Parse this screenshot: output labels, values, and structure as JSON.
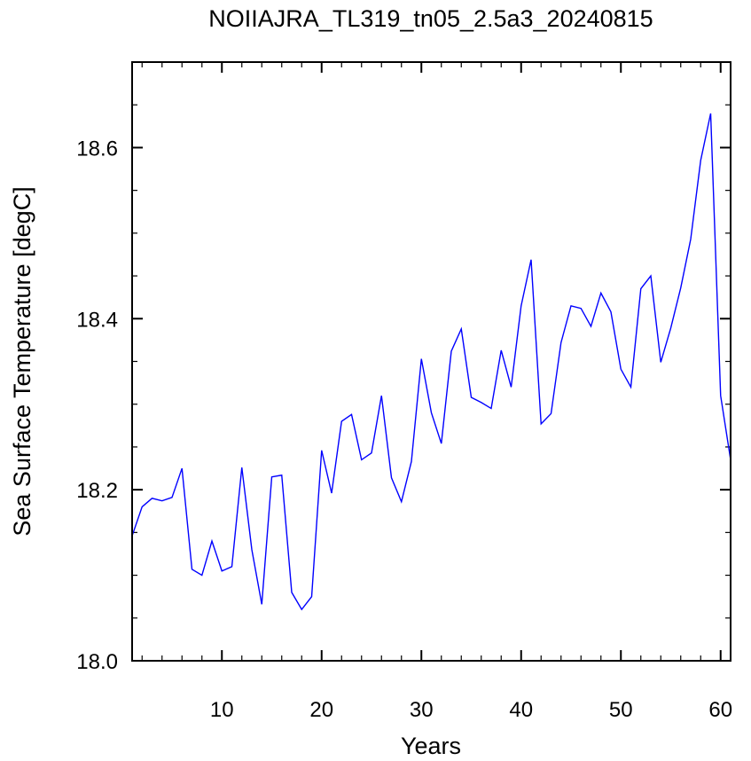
{
  "chart_data": {
    "type": "line",
    "title": "NOIIAJRA_TL319_tn05_2.5a3_20240815",
    "xlabel": "Years",
    "ylabel": "Sea Surface Temperature [degC]",
    "xlim": [
      1,
      61
    ],
    "ylim": [
      18.0,
      18.7
    ],
    "x_ticks": [
      10,
      20,
      30,
      40,
      50,
      60
    ],
    "y_ticks": [
      18.0,
      18.2,
      18.4,
      18.6
    ],
    "y_tick_labels": [
      "18.0",
      "18.2",
      "18.4",
      "18.6"
    ],
    "grid": false,
    "legend": "none",
    "line_color": "#0000ff",
    "series": [
      {
        "x": [
          1,
          2,
          3,
          4,
          5,
          6,
          7,
          8,
          9,
          10,
          11,
          12,
          13,
          14,
          15,
          16,
          17,
          18,
          19,
          20,
          21,
          22,
          23,
          24,
          25,
          26,
          27,
          28,
          29,
          30,
          31,
          32,
          33,
          34,
          35,
          36,
          37,
          38,
          39,
          40,
          41,
          42,
          43,
          44,
          45,
          46,
          47,
          48,
          49,
          50,
          51,
          52,
          53,
          54,
          55,
          56,
          57,
          58,
          59,
          60,
          61
        ],
        "values": [
          18.146,
          18.18,
          18.19,
          18.187,
          18.191,
          18.225,
          18.107,
          18.1,
          18.14,
          18.105,
          18.11,
          18.226,
          18.13,
          18.066,
          18.215,
          18.217,
          18.08,
          18.06,
          18.075,
          18.246,
          18.196,
          18.28,
          18.288,
          18.235,
          18.243,
          18.31,
          18.214,
          18.186,
          18.233,
          18.353,
          18.29,
          18.254,
          18.362,
          18.388,
          18.308,
          18.302,
          18.295,
          18.363,
          18.32,
          18.415,
          18.469,
          18.277,
          18.289,
          18.372,
          18.415,
          18.412,
          18.391,
          18.43,
          18.408,
          18.341,
          18.32,
          18.435,
          18.45,
          18.349,
          18.389,
          18.436,
          18.493,
          18.585,
          18.64,
          18.31,
          18.235
        ]
      }
    ]
  }
}
